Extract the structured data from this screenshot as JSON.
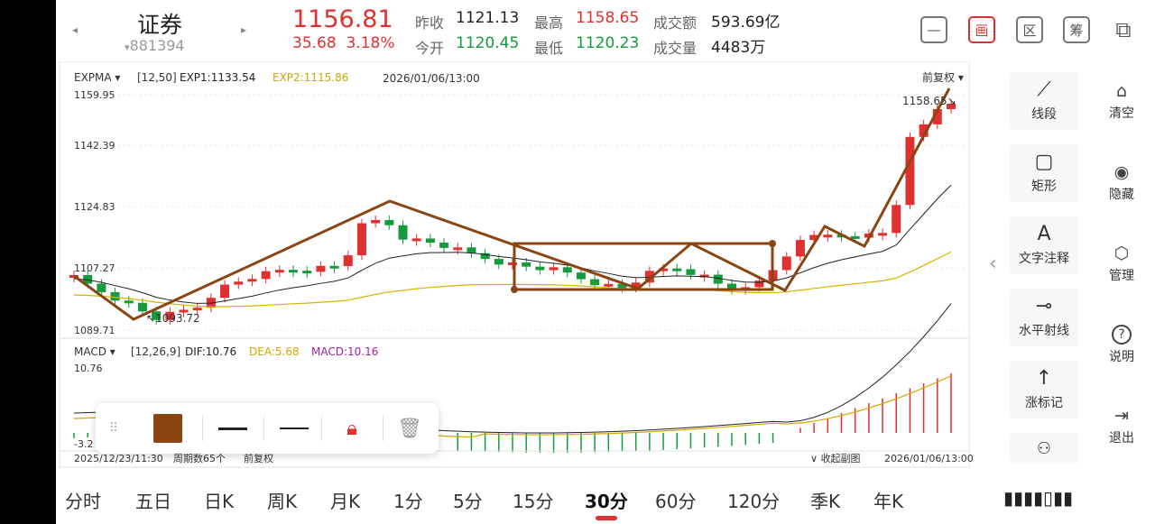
{
  "header": {
    "name": "证券",
    "code": "881394",
    "price": "1156.81",
    "change": "35.68",
    "change_pct": "3.18%",
    "quotes": [
      {
        "label": "昨收",
        "value": "1121.13",
        "color": "dark"
      },
      {
        "label": "最高",
        "value": "1158.65",
        "color": "red"
      },
      {
        "label": "成交额",
        "value": "593.69亿",
        "color": "dark"
      },
      {
        "label": "今开",
        "value": "1120.45",
        "color": "green"
      },
      {
        "label": "最低",
        "value": "1120.23",
        "color": "green"
      },
      {
        "label": "成交量",
        "value": "4483万",
        "color": "dark"
      }
    ],
    "icons": [
      "minus-square-icon",
      "canvas-icon",
      "region-icon",
      "chips-icon",
      "devices-icon"
    ],
    "icon_glyphs": [
      "—",
      "画",
      "区",
      "筹",
      "⧉"
    ]
  },
  "main_chart": {
    "indicator": "EXPMA",
    "params": "[12,50]",
    "exp1": "EXP1:1133.54",
    "exp2": "EXP2:1115.86",
    "datetime": "2026/01/06/13:00",
    "adjust": "前复权",
    "price_labels": [
      "1159.95",
      "1142.39",
      "1124.83",
      "1107.27",
      "1089.71"
    ],
    "low_marker": "1093.72",
    "high_marker": "1158.65"
  },
  "macd": {
    "indicator": "MACD",
    "params": "[12,26,9]",
    "dif": "DIF:10.76",
    "dea": "DEA:5.68",
    "macd": "MACD:10.16",
    "top_label": "10.76",
    "bottom_label": "-3.2"
  },
  "footer": {
    "start": "2025/12/23/11:30",
    "period": "周期数65个",
    "adjust": "前复权",
    "collapse": "收起副图",
    "end": "2026/01/06/13:00"
  },
  "tools": [
    {
      "label": "线段",
      "icon": "segment-line-icon",
      "glyph": "⟋"
    },
    {
      "label": "矩形",
      "icon": "rectangle-icon",
      "glyph": "▢"
    },
    {
      "label": "文字注释",
      "icon": "text-note-icon",
      "glyph": "A"
    },
    {
      "label": "水平射线",
      "icon": "horizontal-ray-icon",
      "glyph": "⊸"
    },
    {
      "label": "涨标记",
      "icon": "up-arrow-icon",
      "glyph": "↑"
    }
  ],
  "side": [
    {
      "label": "清空",
      "icon": "clear-icon",
      "glyph": "⌂"
    },
    {
      "label": "隐藏",
      "icon": "eye-icon",
      "glyph": "◉"
    },
    {
      "label": "管理",
      "icon": "manage-icon",
      "glyph": "⬡"
    },
    {
      "label": "说明",
      "icon": "help-icon",
      "glyph": "?"
    },
    {
      "label": "退出",
      "icon": "exit-icon",
      "glyph": "⇥"
    }
  ],
  "tabs": [
    "分时",
    "五日",
    "日K",
    "周K",
    "月K",
    "1分",
    "5分",
    "15分",
    "30分",
    "60分",
    "120分",
    "季K",
    "年K"
  ],
  "active_tab": "30分",
  "colors": {
    "up": "#e03030",
    "down": "#159a3c",
    "drawing": "#8b4513",
    "exp1": "#222222",
    "exp2": "#d4b400",
    "dea": "#d4a800"
  }
}
